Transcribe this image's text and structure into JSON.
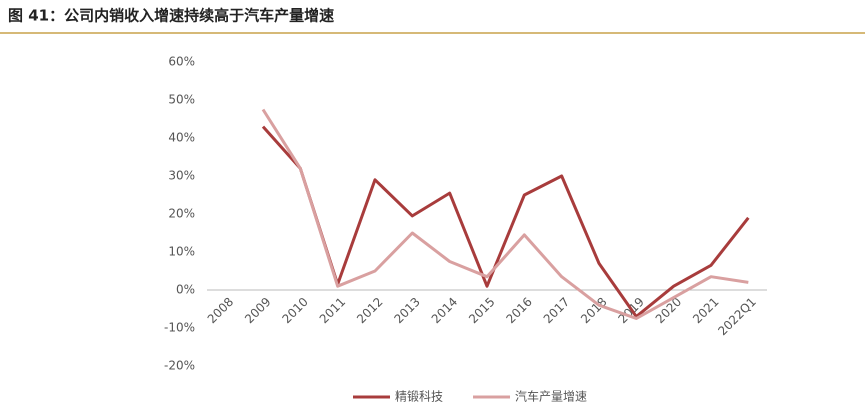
{
  "chart_data": {
    "type": "line",
    "title": "图 41：公司内销收入增速持续高于汽车产量增速",
    "categories": [
      "2008",
      "2009",
      "2010",
      "2011",
      "2012",
      "2013",
      "2014",
      "2015",
      "2016",
      "2017",
      "2018",
      "2019",
      "2020",
      "2021",
      "2022Q1"
    ],
    "series": [
      {
        "name": "精锻科技",
        "color": "#a83c3c",
        "values": [
          null,
          43,
          32,
          1.5,
          29,
          19.5,
          25.5,
          1,
          25,
          30,
          7,
          -7,
          1,
          6.5,
          19
        ]
      },
      {
        "name": "汽车产量增速",
        "color": "#d9a0a0",
        "values": [
          null,
          47.5,
          32,
          1,
          5,
          15,
          7.5,
          3.5,
          14.5,
          3.5,
          -4,
          -7.5,
          -2,
          3.5,
          2
        ]
      }
    ],
    "ylim": [
      -20,
      60
    ],
    "yticks": [
      {
        "value": -20,
        "label": "-20%"
      },
      {
        "value": -10,
        "label": "-10%"
      },
      {
        "value": 0,
        "label": "0%"
      },
      {
        "value": 10,
        "label": "10%"
      },
      {
        "value": 20,
        "label": "20%"
      },
      {
        "value": 30,
        "label": "30%"
      },
      {
        "value": 40,
        "label": "40%"
      },
      {
        "value": 50,
        "label": "50%"
      },
      {
        "value": 60,
        "label": "60%"
      }
    ],
    "grid": false,
    "legend": "bottom"
  }
}
